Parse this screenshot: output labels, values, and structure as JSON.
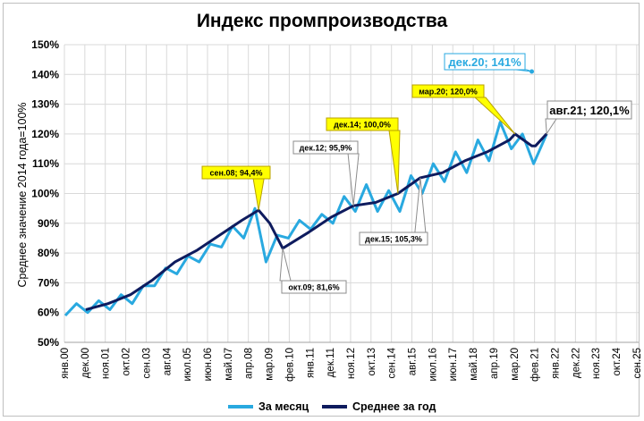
{
  "chart_data": {
    "type": "line",
    "title": "Индекс промпроизводства",
    "ylabel": "Среднее значение 2014 года=100%",
    "xlabel": "",
    "ylim": [
      50,
      150
    ],
    "y_ticks": [
      "50%",
      "60%",
      "70%",
      "80%",
      "90%",
      "100%",
      "110%",
      "120%",
      "130%",
      "140%",
      "150%"
    ],
    "x_ticks": [
      "янв.00",
      "дек.00",
      "ноя.01",
      "окт.02",
      "сен.03",
      "авг.04",
      "июл.05",
      "июн.06",
      "май.07",
      "апр.08",
      "мар.09",
      "фев.10",
      "янв.11",
      "дек.11",
      "ноя.12",
      "окт.13",
      "сен.14",
      "авг.15",
      "июл.16",
      "июн.17",
      "май.18",
      "апр.19",
      "мар.20",
      "фев.21",
      "янв.22",
      "дек.22",
      "ноя.23",
      "окт.24",
      "сен.25"
    ],
    "grid": true,
    "legend_position": "bottom",
    "colors": {
      "monthly": "#29a9e0",
      "annual": "#0e1b5e",
      "callout": "#ffff00"
    },
    "series": [
      {
        "name": "За месяц",
        "x": [
          "янв.00",
          "июл.00",
          "янв.01",
          "июл.01",
          "янв.02",
          "июл.02",
          "янв.03",
          "июл.03",
          "янв.04",
          "июл.04",
          "янв.05",
          "июл.05",
          "янв.06",
          "июл.06",
          "янв.07",
          "июл.07",
          "янв.08",
          "июл.08",
          "янв.09",
          "июл.09",
          "янв.10",
          "июл.10",
          "янв.11",
          "июл.11",
          "янв.12",
          "июл.12",
          "янв.13",
          "июл.13",
          "янв.14",
          "июл.14",
          "янв.15",
          "июл.15",
          "янв.16",
          "июл.16",
          "янв.17",
          "июл.17",
          "янв.18",
          "июл.18",
          "янв.19",
          "июл.19",
          "янв.20",
          "июл.20",
          "янв.21",
          "авг.21"
        ],
        "values": [
          59,
          63,
          60,
          64,
          61,
          66,
          63,
          69,
          69,
          75,
          73,
          79,
          77,
          83,
          82,
          89,
          85,
          95,
          77,
          86,
          85,
          91,
          88,
          93,
          90,
          99,
          94,
          103,
          94,
          101,
          94,
          106,
          100,
          110,
          104,
          114,
          107,
          118,
          111,
          124,
          115,
          120,
          110,
          120
        ],
        "extremes": [
          {
            "label": "дек.20",
            "value": 141
          }
        ]
      },
      {
        "name": "Среднее за год",
        "x": [
          "дек.00",
          "дек.01",
          "дек.02",
          "дек.03",
          "дек.04",
          "дек.05",
          "дек.06",
          "дек.07",
          "сен.08",
          "мар.09",
          "окт.09",
          "дек.10",
          "дек.11",
          "дек.12",
          "дек.13",
          "дек.14",
          "дек.15",
          "дек.16",
          "дек.17",
          "дек.18",
          "дек.19",
          "мар.20",
          "дек.20",
          "фев.21",
          "авг.21"
        ],
        "values": [
          61,
          63,
          66,
          71,
          77,
          81,
          86,
          91,
          94.4,
          90,
          81.6,
          87,
          92,
          95.9,
          97,
          100,
          105.3,
          107,
          111,
          114,
          118,
          120,
          116,
          116,
          120.1
        ]
      }
    ],
    "annotations": [
      {
        "text": "сен.08; 94,4%",
        "style": "yellow",
        "x": "сен.08",
        "y": 94.4
      },
      {
        "text": "окт.09; 81,6%",
        "style": "white",
        "x": "окт.09",
        "y": 81.6
      },
      {
        "text": "дек.12; 95,9%",
        "style": "white",
        "x": "дек.12",
        "y": 95.9
      },
      {
        "text": "дек.14; 100,0%",
        "style": "yellow",
        "x": "дек.14",
        "y": 100.0
      },
      {
        "text": "дек.15; 105,3%",
        "style": "white",
        "x": "дек.15",
        "y": 105.3
      },
      {
        "text": "мар.20; 120,0%",
        "style": "yellow",
        "x": "мар.20",
        "y": 120.0
      },
      {
        "text": "дек.20; 141%",
        "style": "blue",
        "x": "дек.20",
        "y": 141
      },
      {
        "text": "авг.21; 120,1%",
        "style": "big",
        "x": "авг.21",
        "y": 120.1
      }
    ]
  }
}
